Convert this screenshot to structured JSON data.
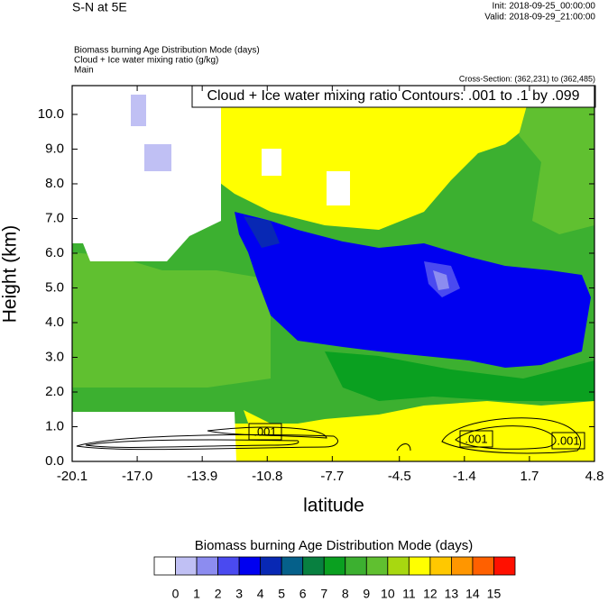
{
  "chart_data": {
    "type": "contour",
    "title": "S-N at 5E",
    "init": "Init: 2018-09-25_00:00:00",
    "valid": "Valid: 2018-09-29_21:00:00",
    "fill_field": "Biomass burning Age Distribution Mode   (days)",
    "contour_field": "Cloud + Ice water mixing ratio   (g/kg)",
    "domain": "Main",
    "cross_section": "Cross-Section: (362,231) to (362,485)",
    "contour_info": "Cloud + Ice water mixing ratio Contours: .001 to .1 by .099",
    "contour_labels": [
      ".001",
      ".001",
      ".001"
    ],
    "x_label": "latitude",
    "y_label": "Height (km)",
    "xlim": [
      -20.1,
      4.8
    ],
    "xticks": [
      -20.1,
      {
        "value": -17.0,
        "label": "-17.0"
      },
      -13.9,
      -10.8,
      -7.7,
      -4.5,
      -1.4,
      1.7,
      4.8
    ],
    "ylim": [
      0,
      10.83
    ],
    "yticks": [
      {
        "value": 0,
        "label": "0.0"
      },
      {
        "value": 1,
        "label": "1.0"
      },
      {
        "value": 2,
        "label": "2.0"
      },
      {
        "value": 3,
        "label": "3.0"
      },
      {
        "value": 4,
        "label": "4.0"
      },
      {
        "value": 5,
        "label": "5.0"
      },
      {
        "value": 6,
        "label": "6.0"
      },
      {
        "value": 7,
        "label": "7.0"
      },
      {
        "value": 8,
        "label": "8.0"
      },
      {
        "value": 9,
        "label": "9.0"
      },
      {
        "value": 10,
        "label": "10.0"
      }
    ],
    "colorbar": {
      "title": "Biomass burning Age Distribution Mode  (days)",
      "levels": [
        0,
        1,
        2,
        3,
        4,
        5,
        6,
        7,
        8,
        9,
        10,
        11,
        12,
        13,
        14,
        15
      ],
      "colors": [
        "#ffffff",
        "#c0c0f4",
        "#8c8cf0",
        "#4a4af0",
        "#0000f0",
        "#0828b4",
        "#05608a",
        "#088040",
        "#0aa020",
        "#3cb030",
        "#60c030",
        "#a8d810",
        "#ffff00",
        "#ffc800",
        "#ff9600",
        "#ff6000",
        "#ff1000"
      ]
    }
  }
}
